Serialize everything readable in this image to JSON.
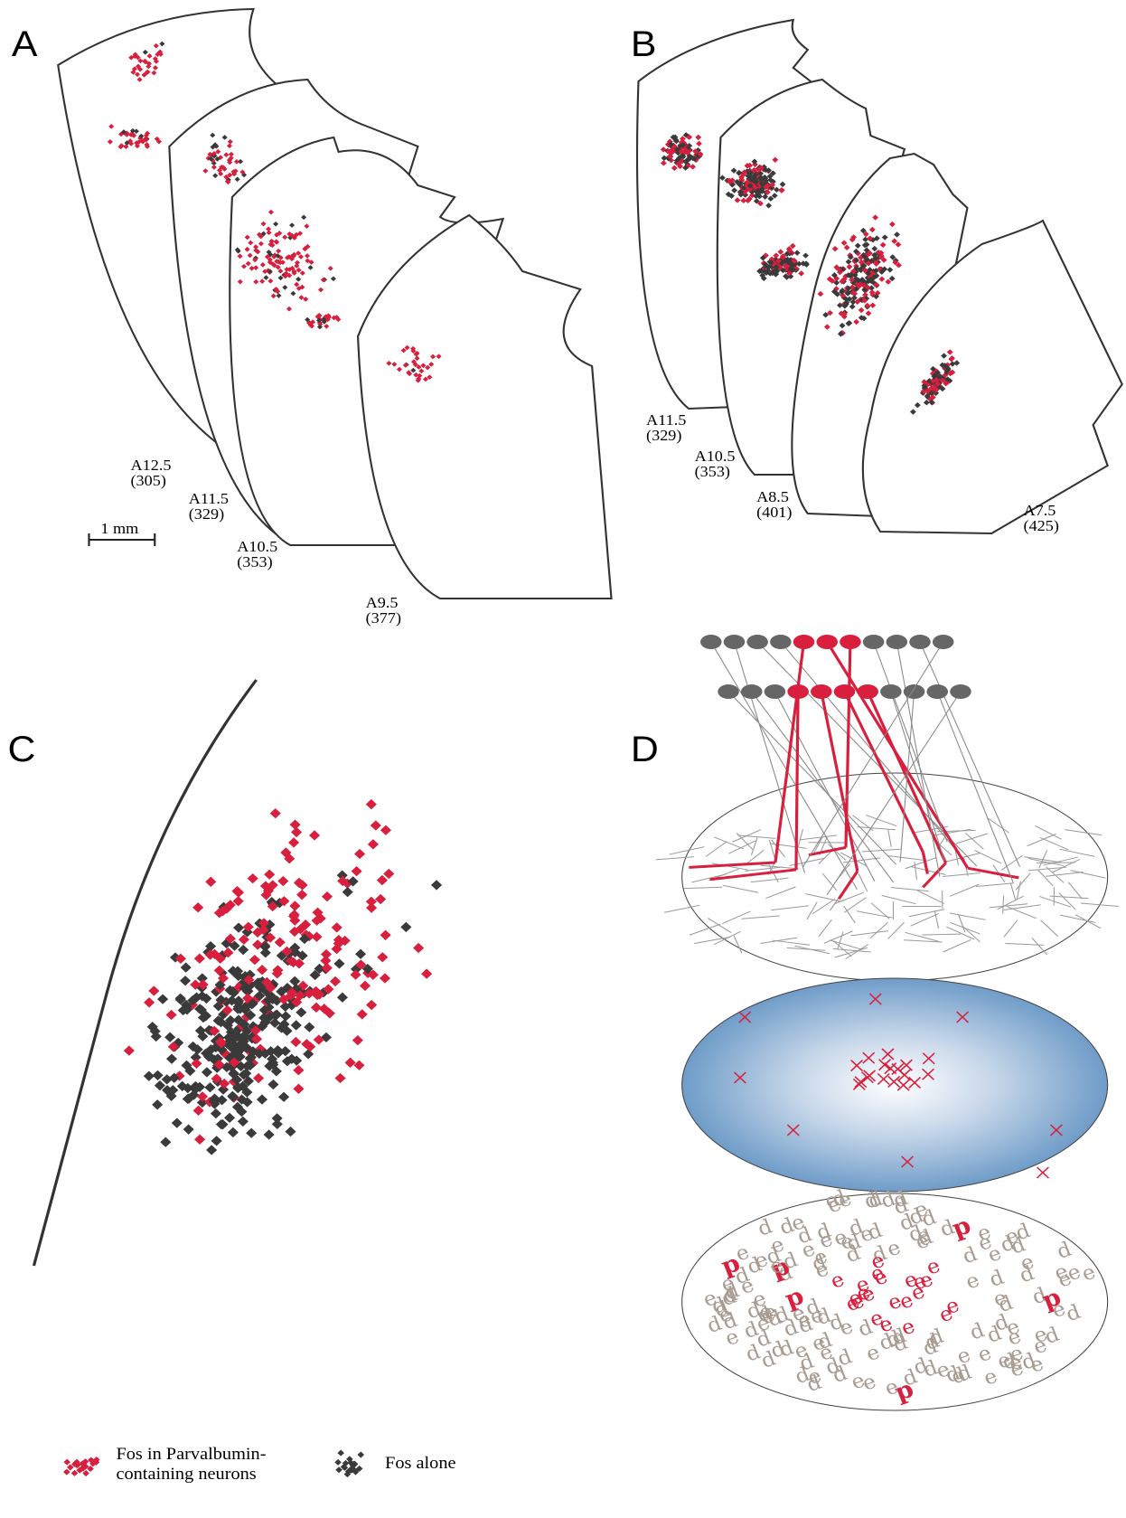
{
  "panels": {
    "a": {
      "label": "A",
      "sections": [
        {
          "name": "A12.5",
          "number": "(305)"
        },
        {
          "name": "A11.5",
          "number": "(329)"
        },
        {
          "name": "A10.5",
          "number": "(353)"
        },
        {
          "name": "A9.5",
          "number": "(377)"
        }
      ],
      "scale_bar": "1 mm"
    },
    "b": {
      "label": "B",
      "sections": [
        {
          "name": "A11.5",
          "number": "(329)"
        },
        {
          "name": "A10.5",
          "number": "(353)"
        },
        {
          "name": "A8.5",
          "number": "(401)"
        },
        {
          "name": "A7.5",
          "number": "(425)"
        }
      ]
    },
    "c": {
      "label": "C"
    },
    "d": {
      "label": "D",
      "glyphs": [
        "d",
        "e",
        "p"
      ]
    }
  },
  "legend": {
    "parvalbumin": [
      "Fos in Parvalbumin-",
      "containing neurons"
    ],
    "fos_alone": "Fos alone"
  }
}
